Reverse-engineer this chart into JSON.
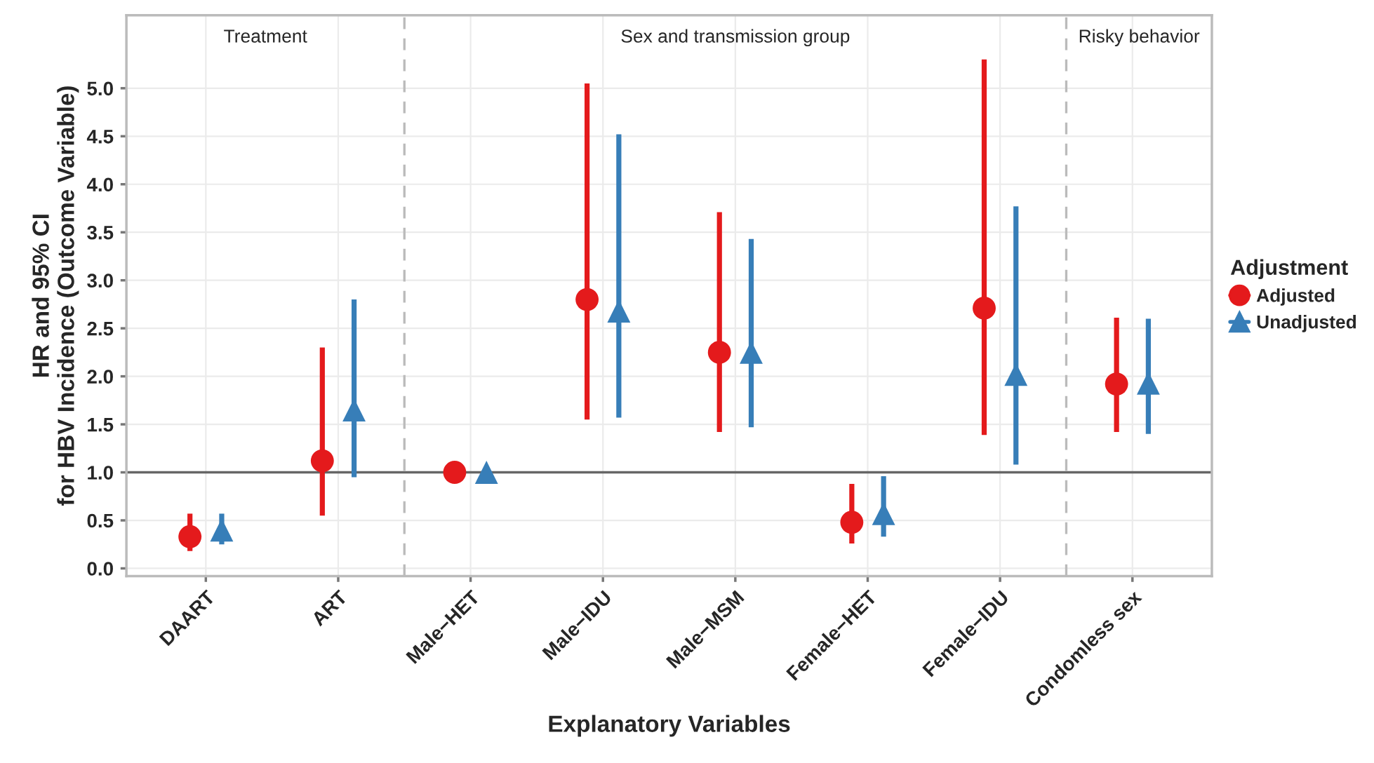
{
  "chart_data": {
    "type": "scatter",
    "xlabel": "Explanatory Variables",
    "ylabel": "HR and 95% CI\nfor HBV Incidence (Outcome Variable)",
    "legend_title": "Adjustment",
    "legend": "right",
    "grid": true,
    "categories": [
      "DAART",
      "ART",
      "Male−HET",
      "Male−IDU",
      "Male−MSM",
      "Female−HET",
      "Female−IDU",
      "Condomless sex"
    ],
    "series": [
      {
        "name": "Adjusted",
        "color": "#e41a1c",
        "marker": "circle",
        "values": [
          0.33,
          1.12,
          1.0,
          2.8,
          2.25,
          0.48,
          2.71,
          1.92
        ],
        "errors": [
          [
            0.18,
            0.57
          ],
          [
            0.55,
            2.3
          ],
          null,
          [
            1.55,
            5.05
          ],
          [
            1.42,
            3.71
          ],
          [
            0.26,
            0.88
          ],
          [
            1.39,
            5.3
          ],
          [
            1.42,
            2.61
          ]
        ]
      },
      {
        "name": "Unadjusted",
        "color": "#377eb8",
        "marker": "triangle",
        "values": [
          0.4,
          1.65,
          1.0,
          2.68,
          2.25,
          0.57,
          2.02,
          1.93
        ],
        "errors": [
          [
            0.25,
            0.57
          ],
          [
            0.95,
            2.8
          ],
          null,
          [
            1.57,
            4.52
          ],
          [
            1.47,
            3.43
          ],
          [
            0.33,
            0.96
          ],
          [
            1.08,
            3.77
          ],
          [
            1.4,
            2.6
          ]
        ]
      }
    ],
    "ylim": [
      -0.08,
      5.76
    ],
    "yticks": [
      {
        "value": 0,
        "label": "0.0"
      },
      {
        "value": 0.5,
        "label": "0.5"
      },
      {
        "value": 1,
        "label": "1.0"
      },
      {
        "value": 1.5,
        "label": "1.5"
      },
      {
        "value": 2,
        "label": "2.0"
      },
      {
        "value": 2.5,
        "label": "2.5"
      },
      {
        "value": 3,
        "label": "3.0"
      },
      {
        "value": 3.5,
        "label": "3.5"
      },
      {
        "value": 4,
        "label": "4.0"
      },
      {
        "value": 4.5,
        "label": "4.5"
      },
      {
        "value": 5,
        "label": "5.0"
      }
    ],
    "ref_lines": [
      {
        "axis": "y",
        "value": 1.0,
        "color": "#666666",
        "line_style": "solid"
      }
    ],
    "annotations": [
      "Treatment",
      "Sex and transmission group",
      "Risky behavior"
    ]
  }
}
